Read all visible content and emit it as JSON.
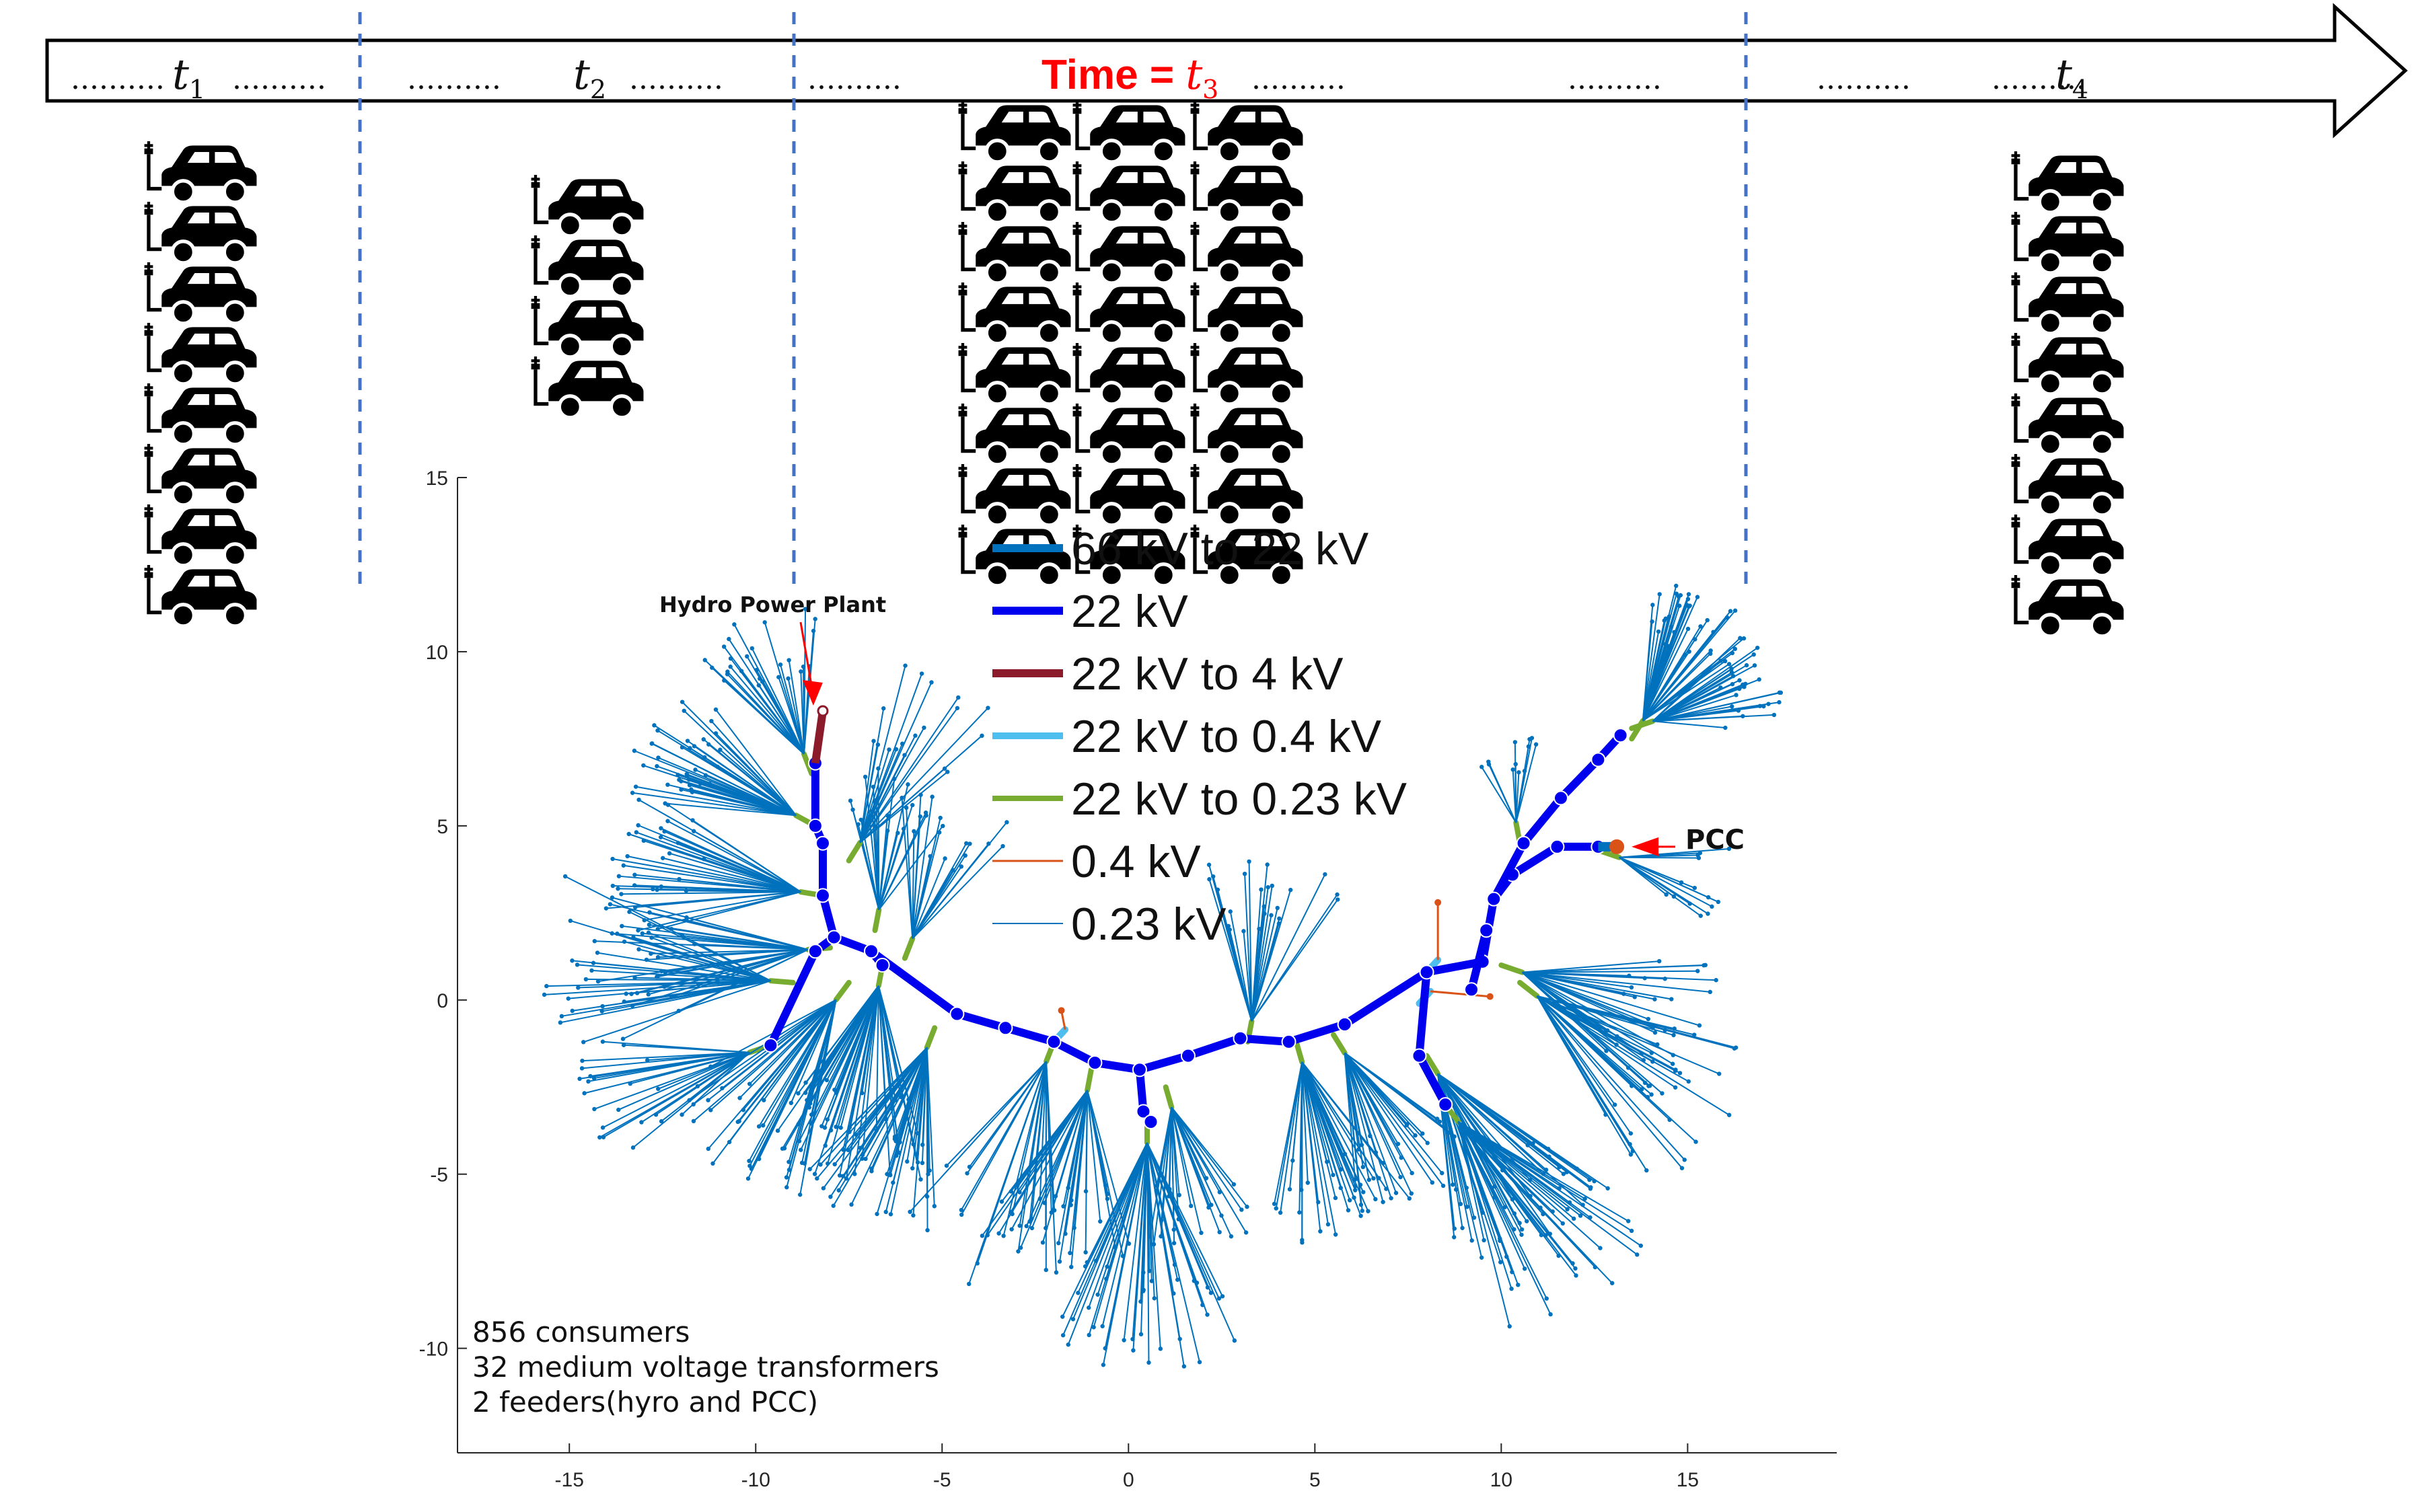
{
  "timeline": {
    "dots": "..........",
    "time_labels": [
      {
        "var": "t",
        "sub": "1"
      },
      {
        "var": "t",
        "sub": "2"
      },
      {
        "var": "t",
        "sub": "3",
        "prefix": "Time = "
      },
      {
        "var": "t",
        "sub": "4"
      }
    ],
    "car_counts": [
      8,
      4,
      24,
      8
    ],
    "highlight_color": "#ff0000",
    "divider_color": "#4472c4"
  },
  "chart_data": {
    "type": "network",
    "xlim": [
      -18,
      19
    ],
    "ylim": [
      -13,
      15
    ],
    "x_ticks": [
      "-15",
      "-10",
      "-5",
      "0",
      "5",
      "10",
      "15"
    ],
    "y_ticks": [
      "15",
      "10",
      "5",
      "0",
      "-5",
      "-10"
    ],
    "legend": [
      {
        "label": "66 kV to 22 kV",
        "color": "#0072bd",
        "width": 12
      },
      {
        "label": "22 kV",
        "color": "#0000ee",
        "width": 12
      },
      {
        "label": "22 kV to 4 kV",
        "color": "#8b1a2a",
        "width": 12
      },
      {
        "label": "22 kV to 0.4 kV",
        "color": "#4dbeee",
        "width": 10
      },
      {
        "label": "22 kV to 0.23 kV",
        "color": "#77ac30",
        "width": 8
      },
      {
        "label": "0.4 kV",
        "color": "#d95319",
        "width": 3
      },
      {
        "label": "0.23 kV",
        "color": "#0072bd",
        "width": 2
      }
    ],
    "annotations": [
      {
        "text": "Hydro Power Plant",
        "x": -8.4,
        "y": 8.3
      },
      {
        "text": "PCC",
        "x": 13.1,
        "y": 4.4
      }
    ],
    "notes": [
      "856 consumers",
      "32 medium voltage transformers",
      "2 feeders(hyro and PCC)"
    ],
    "backbone_22kv": [
      [
        [
          -8.4,
          6.8
        ],
        [
          -8.4,
          5.0
        ],
        [
          -8.2,
          4.5
        ],
        [
          -8.2,
          3.0
        ],
        [
          -7.9,
          1.8
        ],
        [
          -6.9,
          1.4
        ],
        [
          -4.6,
          -0.4
        ],
        [
          -3.3,
          -0.8
        ],
        [
          -2.0,
          -1.2
        ],
        [
          -0.9,
          -1.8
        ],
        [
          0.3,
          -2.0
        ],
        [
          1.6,
          -1.6
        ],
        [
          3.0,
          -1.1
        ],
        [
          4.3,
          -1.2
        ],
        [
          5.8,
          -0.7
        ],
        [
          8.0,
          0.8
        ],
        [
          9.5,
          1.1
        ],
        [
          9.8,
          2.9
        ],
        [
          10.3,
          3.6
        ],
        [
          11.5,
          4.4
        ],
        [
          12.6,
          4.4
        ]
      ],
      [
        [
          -7.9,
          1.8
        ],
        [
          -8.4,
          1.4
        ],
        [
          -9.6,
          -1.3
        ]
      ],
      [
        [
          -6.9,
          1.4
        ],
        [
          -6.6,
          1.0
        ]
      ],
      [
        [
          0.3,
          -2.0
        ],
        [
          0.4,
          -3.2
        ],
        [
          0.6,
          -3.5
        ]
      ],
      [
        [
          8.0,
          0.8
        ],
        [
          7.8,
          -1.6
        ],
        [
          8.5,
          -3.0
        ]
      ],
      [
        [
          9.8,
          2.9
        ],
        [
          10.6,
          4.5
        ],
        [
          11.6,
          5.8
        ],
        [
          12.6,
          6.9
        ],
        [
          13.2,
          7.6
        ]
      ],
      [
        [
          9.6,
          2.0
        ],
        [
          9.2,
          0.3
        ]
      ]
    ],
    "tie_66kv": [
      [
        12.6,
        4.4
      ],
      [
        13.1,
        4.4
      ]
    ],
    "tie_4kv": [
      [
        -8.4,
        6.8
      ],
      [
        -8.2,
        8.3
      ]
    ],
    "pcc_point": [
      13.1,
      4.4
    ],
    "hydro_point": [
      -8.2,
      8.3
    ]
  }
}
